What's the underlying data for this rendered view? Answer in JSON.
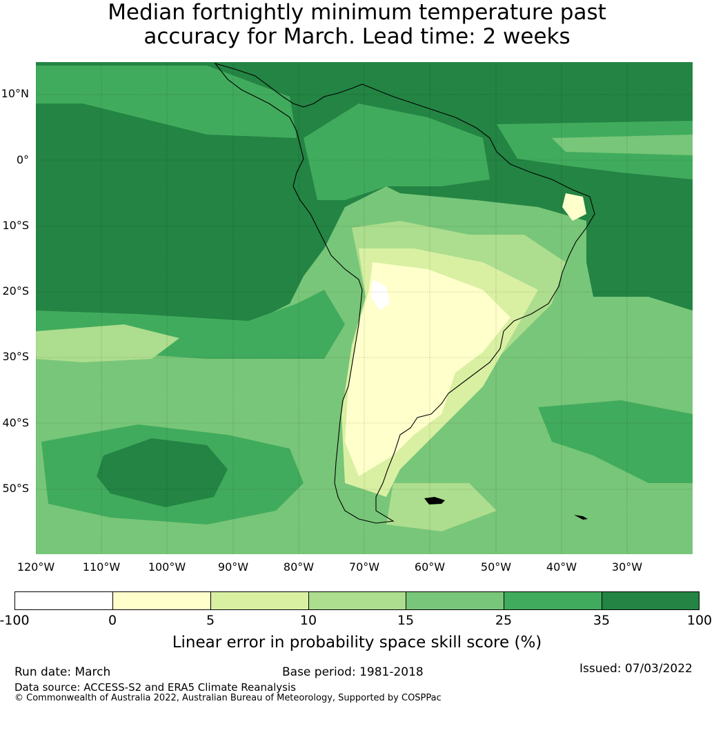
{
  "title": {
    "line1": "Median fortnightly minimum temperature past",
    "line2": "accuracy for March. Lead time: 2 weeks"
  },
  "map": {
    "lat_labels": [
      "10°N",
      "0°",
      "10°S",
      "20°S",
      "30°S",
      "40°S",
      "50°S"
    ],
    "lon_labels": [
      "120°W",
      "110°W",
      "100°W",
      "90°W",
      "80°W",
      "70°W",
      "60°W",
      "50°W",
      "40°W",
      "30°W"
    ]
  },
  "colorbar": {
    "ticks": [
      "-100",
      "0",
      "5",
      "10",
      "15",
      "25",
      "35",
      "100"
    ],
    "colors": [
      "#ffffff",
      "#ffffcc",
      "#d9f0a3",
      "#addd8e",
      "#78c679",
      "#41ab5d",
      "#238443"
    ],
    "label": "Linear error in probability space skill score (%)"
  },
  "footer": {
    "run_date": "Run date: March",
    "base_period": "Base period: 1981-2018",
    "issued": "Issued: 07/03/2022",
    "data_source": "Data source: ACCESS-S2 and ERA5 Climate Reanalysis",
    "copyright": "© Commonwealth of Australia 2022, Australian Bureau of Meteorology, Supported by COSPPac"
  }
}
